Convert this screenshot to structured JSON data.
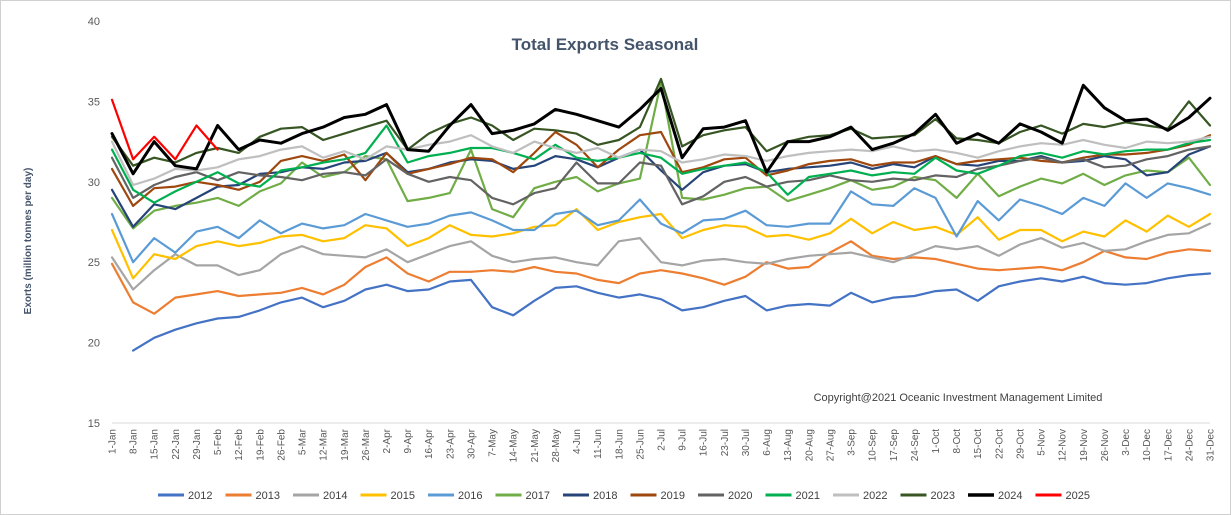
{
  "chart_data": {
    "type": "line",
    "title": "Total Exports Seasonal",
    "ylabel": "Exorts (million tonnes per day)",
    "xlabel": "",
    "ylim": [
      15,
      40
    ],
    "yticks": [
      15,
      20,
      25,
      30,
      35,
      40
    ],
    "grid": false,
    "legend_position": "bottom",
    "annotation": "Copyright@2021 Oceanic Investment Management Limited",
    "x_tick_labels": [
      "1-Jan",
      "8-Jan",
      "15-Jan",
      "22-Jan",
      "29-Jan",
      "5-Feb",
      "12-Feb",
      "19-Feb",
      "26-Feb",
      "5-Mar",
      "12-Mar",
      "19-Mar",
      "26-Mar",
      "2-Apr",
      "9-Apr",
      "16-Apr",
      "23-Apr",
      "30-Apr",
      "7-May",
      "14-May",
      "21-May",
      "28-May",
      "4-Jun",
      "11-Jun",
      "18-Jun",
      "25-Jun",
      "2-Jul",
      "9-Jul",
      "16-Jul",
      "23-Jul",
      "30-Jul",
      "6-Aug",
      "13-Aug",
      "20-Aug",
      "27-Aug",
      "3-Sep",
      "10-Sep",
      "17-Sep",
      "24-Sep",
      "1-Oct",
      "8-Oct",
      "15-Oct",
      "22-Oct",
      "29-Oct",
      "5-Nov",
      "12-Nov",
      "19-Nov",
      "26-Nov",
      "3-Dec",
      "10-Dec",
      "17-Dec",
      "24-Dec",
      "31-Dec"
    ],
    "x": [
      "1-Jan",
      "8-Jan",
      "15-Jan",
      "22-Jan",
      "29-Jan",
      "5-Feb",
      "12-Feb",
      "19-Feb",
      "26-Feb",
      "5-Mar",
      "12-Mar",
      "19-Mar",
      "26-Mar",
      "2-Apr",
      "9-Apr",
      "16-Apr",
      "23-Apr",
      "30-Apr",
      "7-May",
      "14-May",
      "21-May",
      "28-May",
      "4-Jun",
      "11-Jun",
      "18-Jun",
      "25-Jun",
      "2-Jul",
      "9-Jul",
      "16-Jul",
      "23-Jul",
      "30-Jul",
      "6-Aug",
      "13-Aug",
      "20-Aug",
      "27-Aug",
      "3-Sep",
      "10-Sep",
      "17-Sep",
      "24-Sep",
      "1-Oct",
      "8-Oct",
      "15-Oct",
      "22-Oct",
      "29-Oct",
      "5-Nov",
      "12-Nov",
      "19-Nov",
      "26-Nov",
      "3-Dec",
      "10-Dec",
      "17-Dec",
      "24-Dec",
      "31-Dec"
    ],
    "series": [
      {
        "name": "2012",
        "color": "#4472c4",
        "values": [
          null,
          19.5,
          20.3,
          20.8,
          21.2,
          21.5,
          21.6,
          22.0,
          22.5,
          22.8,
          22.2,
          22.6,
          23.3,
          23.6,
          23.2,
          23.3,
          23.8,
          23.9,
          22.2,
          21.7,
          22.6,
          23.4,
          23.5,
          23.1,
          22.8,
          23.0,
          22.7,
          22.0,
          22.2,
          22.6,
          22.9,
          22.0,
          22.3,
          22.4,
          22.3,
          23.1,
          22.5,
          22.8,
          22.9,
          23.2,
          23.3,
          22.6,
          23.5,
          23.8,
          24.0,
          23.8,
          24.1,
          23.7,
          23.6,
          23.7,
          24.0,
          24.2,
          24.3
        ]
      },
      {
        "name": "2013",
        "color": "#ed7d31",
        "values": [
          24.9,
          22.5,
          21.8,
          22.8,
          23.0,
          23.2,
          22.9,
          23.0,
          23.1,
          23.4,
          23.0,
          23.6,
          24.7,
          25.3,
          24.3,
          23.8,
          24.4,
          24.4,
          24.5,
          24.4,
          24.7,
          24.4,
          24.3,
          23.9,
          23.7,
          24.3,
          24.5,
          24.3,
          24.0,
          23.6,
          24.1,
          25.0,
          24.6,
          24.7,
          25.6,
          26.3,
          25.4,
          25.2,
          25.3,
          25.2,
          24.9,
          24.6,
          24.5,
          24.6,
          24.7,
          24.5,
          25.0,
          25.7,
          25.3,
          25.2,
          25.6,
          25.8,
          25.7
        ]
      },
      {
        "name": "2014",
        "color": "#a5a5a5",
        "values": [
          25.3,
          23.3,
          24.5,
          25.5,
          24.8,
          24.8,
          24.2,
          24.5,
          25.5,
          26.0,
          25.5,
          25.4,
          25.3,
          25.8,
          25.0,
          25.5,
          26.0,
          26.3,
          25.4,
          25.0,
          25.2,
          25.3,
          25.0,
          24.8,
          26.3,
          26.5,
          25.0,
          24.8,
          25.1,
          25.2,
          25.0,
          24.9,
          25.2,
          25.4,
          25.5,
          25.6,
          25.3,
          25.0,
          25.5,
          26.0,
          25.8,
          26.0,
          25.4,
          26.1,
          26.5,
          25.9,
          26.2,
          25.7,
          25.8,
          26.3,
          26.7,
          26.8,
          27.4
        ]
      },
      {
        "name": "2015",
        "color": "#ffc000",
        "values": [
          27.0,
          24.0,
          25.5,
          25.2,
          26.0,
          26.3,
          26.0,
          26.2,
          26.6,
          26.7,
          26.3,
          26.5,
          27.3,
          27.1,
          26.0,
          26.5,
          27.3,
          26.7,
          26.6,
          26.8,
          27.2,
          27.3,
          28.3,
          27.0,
          27.5,
          27.8,
          28.0,
          26.5,
          27.0,
          27.3,
          27.2,
          26.6,
          26.7,
          26.4,
          26.8,
          27.7,
          26.8,
          27.5,
          27.0,
          27.2,
          26.7,
          27.8,
          26.4,
          27.0,
          27.0,
          26.3,
          26.9,
          26.6,
          27.6,
          26.9,
          27.9,
          27.2,
          28.0
        ]
      },
      {
        "name": "2016",
        "color": "#5b9bd5",
        "values": [
          28.0,
          25.0,
          26.5,
          25.6,
          26.9,
          27.2,
          26.5,
          27.6,
          26.8,
          27.4,
          27.1,
          27.3,
          28.0,
          27.6,
          27.2,
          27.4,
          27.9,
          28.1,
          27.6,
          27.0,
          27.0,
          28.0,
          28.2,
          27.3,
          27.6,
          28.9,
          27.4,
          26.8,
          27.6,
          27.7,
          28.2,
          27.3,
          27.2,
          27.4,
          27.4,
          29.4,
          28.6,
          28.5,
          29.6,
          29.0,
          26.6,
          28.8,
          27.6,
          28.9,
          28.5,
          28.0,
          29.0,
          28.5,
          29.9,
          29.0,
          29.9,
          29.6,
          29.2
        ]
      },
      {
        "name": "2017",
        "color": "#70ad47",
        "values": [
          29.0,
          27.1,
          28.2,
          28.5,
          28.7,
          29.0,
          28.5,
          29.4,
          29.9,
          31.2,
          30.3,
          30.6,
          31.6,
          31.4,
          28.8,
          29.0,
          29.3,
          32.0,
          28.3,
          27.8,
          29.6,
          30.0,
          30.3,
          29.4,
          29.9,
          30.2,
          36.2,
          29.0,
          28.9,
          29.2,
          29.6,
          29.7,
          28.8,
          29.2,
          29.6,
          30.1,
          29.5,
          29.7,
          30.3,
          30.1,
          29.0,
          30.5,
          29.1,
          29.7,
          30.2,
          29.9,
          30.5,
          29.8,
          30.4,
          30.7,
          30.6,
          31.5,
          29.8
        ]
      },
      {
        "name": "2018",
        "color": "#264478",
        "values": [
          29.5,
          27.2,
          28.6,
          28.3,
          29.0,
          29.7,
          29.8,
          30.5,
          30.6,
          30.9,
          30.8,
          31.2,
          31.3,
          31.8,
          30.6,
          30.8,
          31.2,
          31.4,
          31.3,
          30.8,
          31.0,
          31.6,
          31.4,
          30.9,
          31.5,
          32.0,
          30.7,
          29.5,
          30.6,
          31.0,
          31.1,
          30.6,
          30.8,
          30.9,
          31.0,
          31.2,
          30.8,
          31.1,
          30.9,
          31.6,
          31.1,
          31.0,
          31.3,
          31.3,
          31.6,
          31.2,
          31.3,
          31.6,
          31.4,
          30.4,
          30.6,
          31.7,
          32.2
        ]
      },
      {
        "name": "2019",
        "color": "#9e480e",
        "values": [
          30.8,
          28.5,
          29.6,
          29.7,
          30.0,
          29.8,
          29.5,
          30.0,
          31.3,
          31.6,
          31.3,
          31.7,
          30.1,
          31.8,
          30.5,
          30.8,
          31.1,
          31.5,
          31.4,
          30.6,
          31.8,
          33.1,
          32.3,
          30.9,
          32.0,
          32.9,
          33.1,
          30.6,
          30.9,
          31.4,
          31.5,
          30.4,
          30.7,
          31.1,
          31.3,
          31.4,
          31.0,
          31.2,
          31.2,
          31.6,
          31.1,
          31.3,
          31.4,
          31.5,
          31.3,
          31.2,
          31.5,
          31.7,
          31.7,
          31.8,
          32.0,
          32.3,
          32.9
        ]
      },
      {
        "name": "2020",
        "color": "#636363",
        "values": [
          31.5,
          29.0,
          29.8,
          30.3,
          30.6,
          30.1,
          30.6,
          30.4,
          30.3,
          30.1,
          30.5,
          30.6,
          30.4,
          31.4,
          30.5,
          30.0,
          30.3,
          30.1,
          29.0,
          28.6,
          29.3,
          29.6,
          31.2,
          29.9,
          29.9,
          31.2,
          31.0,
          28.6,
          29.1,
          30.0,
          30.3,
          29.7,
          30.0,
          30.1,
          30.4,
          30.1,
          30.0,
          30.2,
          30.1,
          30.4,
          30.3,
          30.8,
          31.0,
          31.3,
          31.5,
          31.2,
          31.4,
          30.9,
          31.0,
          31.4,
          31.6,
          32.0,
          32.2
        ]
      },
      {
        "name": "2021",
        "color": "#00b050",
        "values": [
          32.0,
          29.5,
          28.7,
          29.4,
          30.0,
          30.6,
          29.9,
          29.7,
          30.7,
          30.9,
          31.2,
          31.4,
          31.8,
          33.5,
          31.2,
          31.6,
          31.8,
          32.1,
          32.1,
          31.8,
          31.4,
          32.3,
          31.5,
          31.3,
          31.5,
          31.8,
          31.5,
          30.5,
          30.8,
          31.0,
          31.2,
          30.6,
          29.2,
          30.3,
          30.5,
          30.7,
          30.4,
          30.6,
          30.5,
          31.5,
          30.7,
          30.5,
          31.0,
          31.6,
          31.8,
          31.5,
          31.9,
          31.7,
          31.9,
          32.0,
          32.0,
          32.4,
          32.6
        ]
      },
      {
        "name": "2022",
        "color": "#bfbfbf",
        "values": [
          32.5,
          29.8,
          30.2,
          30.8,
          30.7,
          30.9,
          31.4,
          31.6,
          32.0,
          32.2,
          31.5,
          31.9,
          31.4,
          32.2,
          32.0,
          32.3,
          32.5,
          32.9,
          32.2,
          31.8,
          32.5,
          32.1,
          31.8,
          32.1,
          31.5,
          32.0,
          31.9,
          31.2,
          31.4,
          31.7,
          31.6,
          31.3,
          31.6,
          31.8,
          31.9,
          32.0,
          31.9,
          32.2,
          31.9,
          32.0,
          31.8,
          31.5,
          31.9,
          32.2,
          32.4,
          32.3,
          32.6,
          32.3,
          32.1,
          32.5,
          32.4,
          32.5,
          32.8
        ]
      },
      {
        "name": "2023",
        "color": "#375623",
        "values": [
          32.8,
          31.0,
          31.5,
          31.2,
          31.8,
          32.1,
          31.8,
          32.8,
          33.3,
          33.4,
          32.6,
          33.0,
          33.4,
          33.8,
          32.0,
          33.0,
          33.6,
          34.0,
          33.5,
          32.6,
          33.3,
          33.2,
          33.0,
          32.3,
          32.6,
          33.4,
          36.4,
          32.2,
          32.9,
          33.2,
          33.4,
          31.9,
          32.5,
          32.8,
          32.9,
          33.3,
          32.7,
          32.8,
          32.9,
          33.9,
          32.7,
          32.6,
          32.4,
          33.1,
          33.5,
          33.0,
          33.6,
          33.4,
          33.7,
          33.5,
          33.3,
          35.0,
          33.5
        ]
      },
      {
        "name": "2024",
        "color": "#000000",
        "values": [
          33.0,
          30.5,
          32.5,
          31.0,
          30.8,
          33.5,
          32.0,
          32.6,
          32.4,
          33.0,
          33.4,
          34.0,
          34.2,
          34.8,
          32.0,
          31.9,
          33.5,
          34.8,
          33.0,
          33.2,
          33.6,
          34.5,
          34.2,
          33.8,
          33.4,
          34.5,
          35.8,
          31.5,
          33.3,
          33.4,
          33.8,
          30.6,
          32.5,
          32.5,
          32.8,
          33.4,
          32.0,
          32.4,
          33.0,
          34.2,
          32.4,
          33.0,
          32.4,
          33.6,
          33.1,
          32.4,
          36.0,
          34.6,
          33.8,
          33.9,
          33.2,
          34.0,
          35.2
        ]
      },
      {
        "name": "2025",
        "color": "#ff0000",
        "values": [
          35.1,
          31.4,
          32.8,
          31.4,
          33.5,
          32.0,
          null,
          null,
          null,
          null,
          null,
          null,
          null,
          null,
          null,
          null,
          null,
          null,
          null,
          null,
          null,
          null,
          null,
          null,
          null,
          null,
          null,
          null,
          null,
          null,
          null,
          null,
          null,
          null,
          null,
          null,
          null,
          null,
          null,
          null,
          null,
          null,
          null,
          null,
          null,
          null,
          null,
          null,
          null,
          null,
          null,
          null,
          null
        ]
      }
    ]
  }
}
